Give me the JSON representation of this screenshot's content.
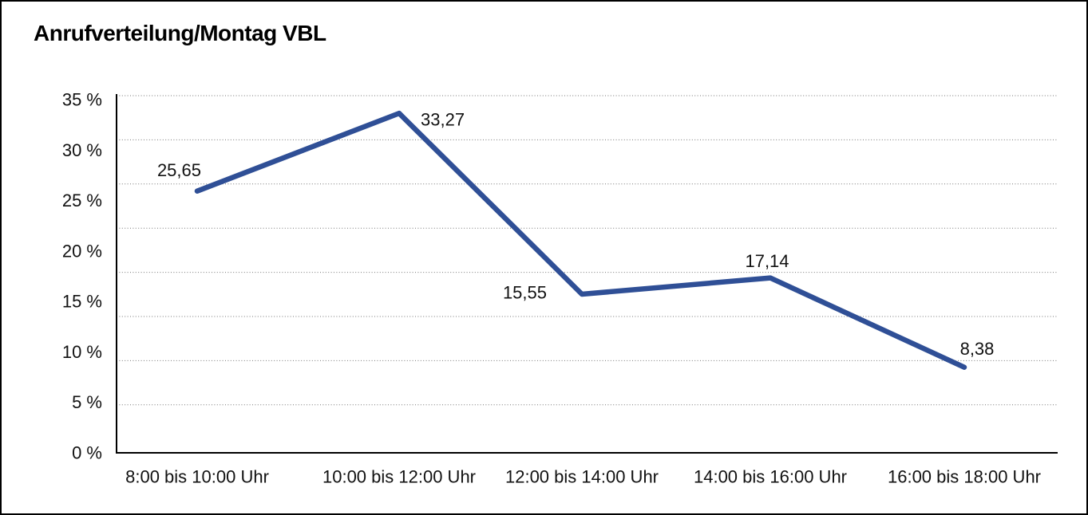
{
  "frame": {
    "background": "#ffffff",
    "border_color": "#000000"
  },
  "chart_data": {
    "type": "line",
    "title": "Anrufverteilung/Montag VBL",
    "unit": "%",
    "categories": [
      "8:00 bis 10:00 Uhr",
      "10:00 bis 12:00 Uhr",
      "12:00 bis 14:00 Uhr",
      "14:00 bis 16:00 Uhr",
      "16:00 bis 18:00 Uhr"
    ],
    "values": [
      25.65,
      33.27,
      15.55,
      17.14,
      8.38
    ],
    "value_labels": [
      "25,65",
      "33,27",
      "15,55",
      "17,14",
      "8,38"
    ],
    "y_ticks": [
      "35 %",
      "30 %",
      "25 %",
      "20 %",
      "15 %",
      "10 %",
      "5 %",
      "0 %"
    ],
    "ylim": [
      0,
      35
    ],
    "y_step": 5,
    "xlabel": "",
    "ylabel": "",
    "legend": "none",
    "grid": "horizontal-dotted",
    "line_color": "#2f4f96",
    "text_color": "#111111",
    "grid_color": "#777777"
  }
}
